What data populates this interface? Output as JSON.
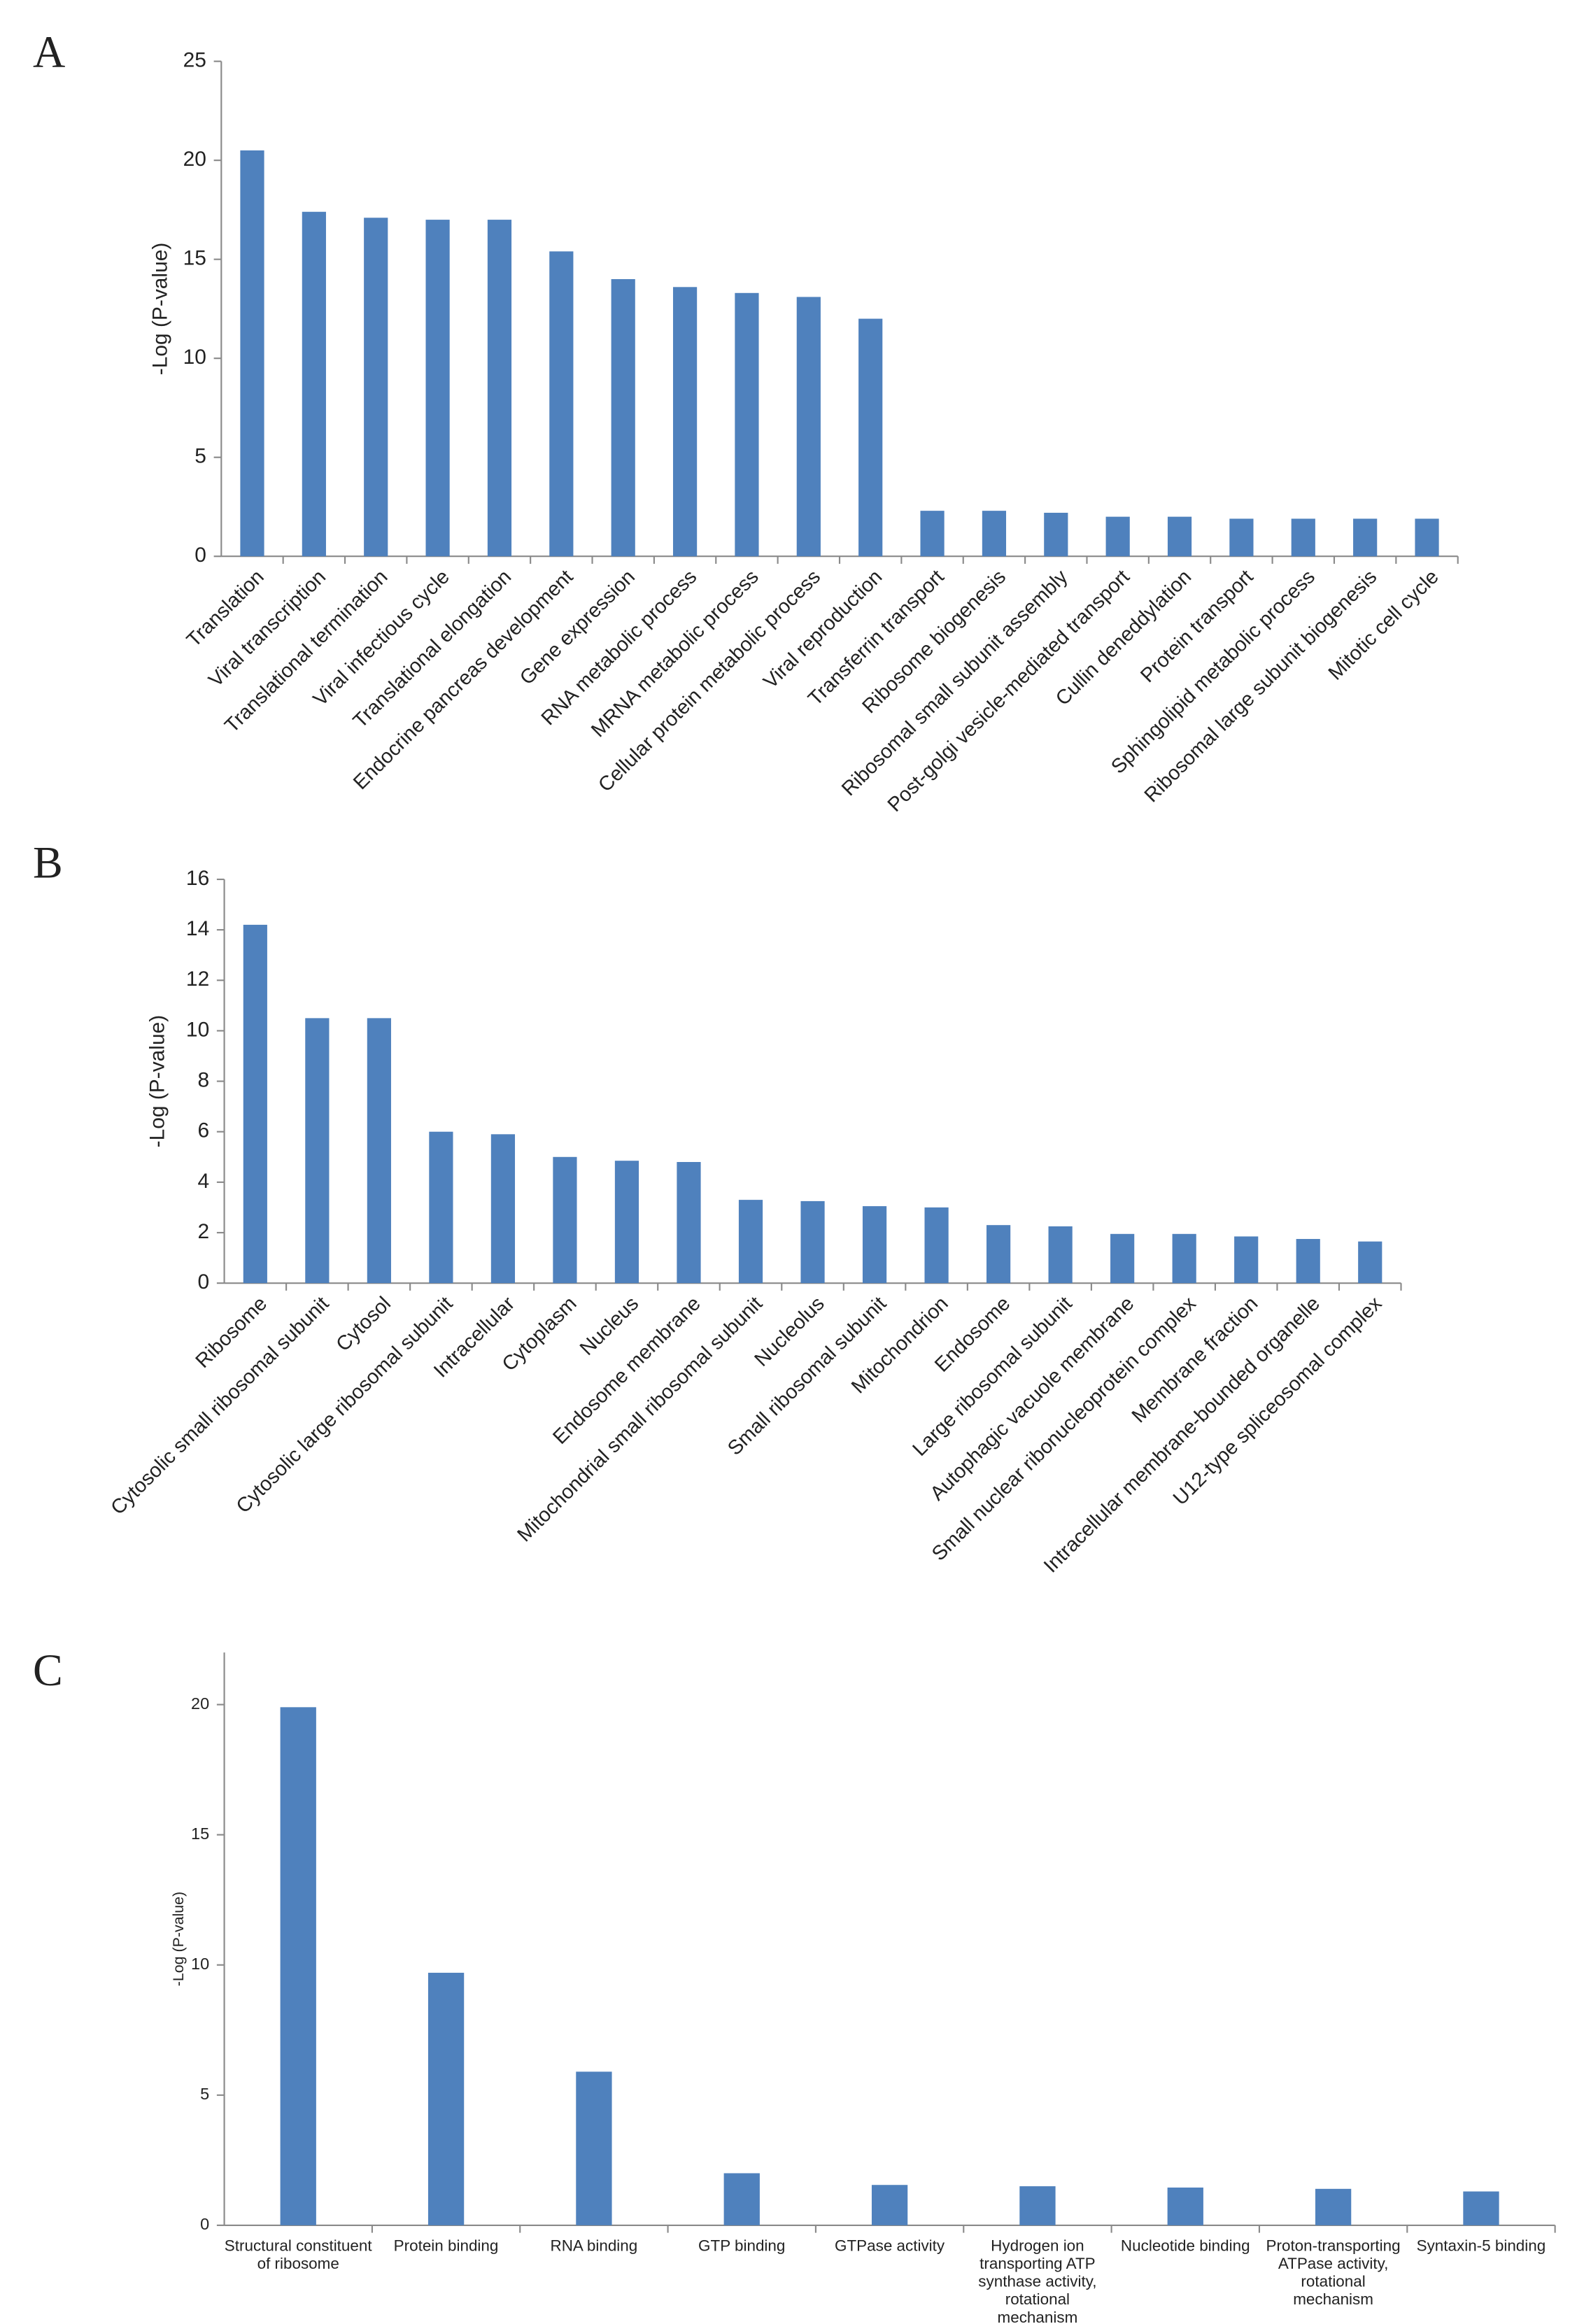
{
  "chart_data": [
    {
      "type": "bar",
      "panel": "A",
      "y_label": "-Log (P-value)",
      "color": "#4f81bd",
      "categories": [
        "Translation",
        "Viral transcription",
        "Translational termination",
        "Viral infectious cycle",
        "Translational elongation",
        "Endocrine pancreas development",
        "Gene expression",
        "RNA metabolic process",
        "MRNA metabolic process",
        "Cellular protein metabolic process",
        "Viral reproduction",
        "Transferrin transport",
        "Ribosome biogenesis",
        "Ribosomal small subunit assembly",
        "Post-golgi vesicle-mediated transport",
        "Cullin deneddylation",
        "Protein transport",
        "Sphingolipid metabolic process",
        "Ribosomal large subunit biogenesis",
        "Mitotic cell cycle"
      ],
      "values": [
        20.5,
        17.4,
        17.1,
        17.0,
        17.0,
        15.4,
        14.0,
        13.6,
        13.3,
        13.1,
        12.0,
        2.3,
        2.3,
        2.2,
        2.0,
        2.0,
        1.9,
        1.9,
        1.9,
        1.9
      ],
      "ylim": [
        0,
        25
      ],
      "yticks": [
        0,
        5,
        10,
        15,
        20,
        25
      ]
    },
    {
      "type": "bar",
      "panel": "B",
      "y_label": "-Log (P-value)",
      "color": "#4f81bd",
      "categories": [
        "Ribosome",
        "Cytosolic small ribosomal subunit",
        "Cytosol",
        "Cytosolic large ribosomal subunit",
        "Intracellular",
        "Cytoplasm",
        "Nucleus",
        "Endosome membrane",
        "Mitochondrial small ribosomal subunit",
        "Nucleolus",
        "Small ribosomal subunit",
        "Mitochondrion",
        "Endosome",
        "Large ribosomal subunit",
        "Autophagic vacuole membrane",
        "Small nuclear ribonucleoprotein complex",
        "Membrane fraction",
        "Intracellular membrane-bounded organelle",
        "U12-type spliceosomal complex"
      ],
      "values": [
        14.2,
        10.5,
        10.5,
        6.0,
        5.9,
        5.0,
        4.85,
        4.8,
        3.3,
        3.25,
        3.05,
        3.0,
        2.3,
        2.25,
        1.95,
        1.95,
        1.85,
        1.75,
        1.65
      ],
      "ylim": [
        0,
        16
      ],
      "yticks": [
        0,
        2,
        4,
        6,
        8,
        10,
        12,
        14,
        16
      ]
    },
    {
      "type": "bar",
      "panel": "C",
      "y_label": "-Log (P-value)",
      "color": "#4f81bd",
      "categories": [
        "Structural constituent of ribosome",
        "Protein binding",
        "RNA binding",
        "GTP binding",
        "GTPase activity",
        "Hydrogen ion transporting ATP synthase activity, rotational mechanism",
        "Nucleotide binding",
        "Proton-transporting ATPase activity, rotational mechanism",
        "Syntaxin-5 binding"
      ],
      "values": [
        19.9,
        9.7,
        5.9,
        2.0,
        1.55,
        1.5,
        1.45,
        1.4,
        1.3
      ],
      "ylim": [
        0,
        22
      ],
      "yticks": [
        0,
        5,
        10,
        15,
        20
      ]
    }
  ]
}
